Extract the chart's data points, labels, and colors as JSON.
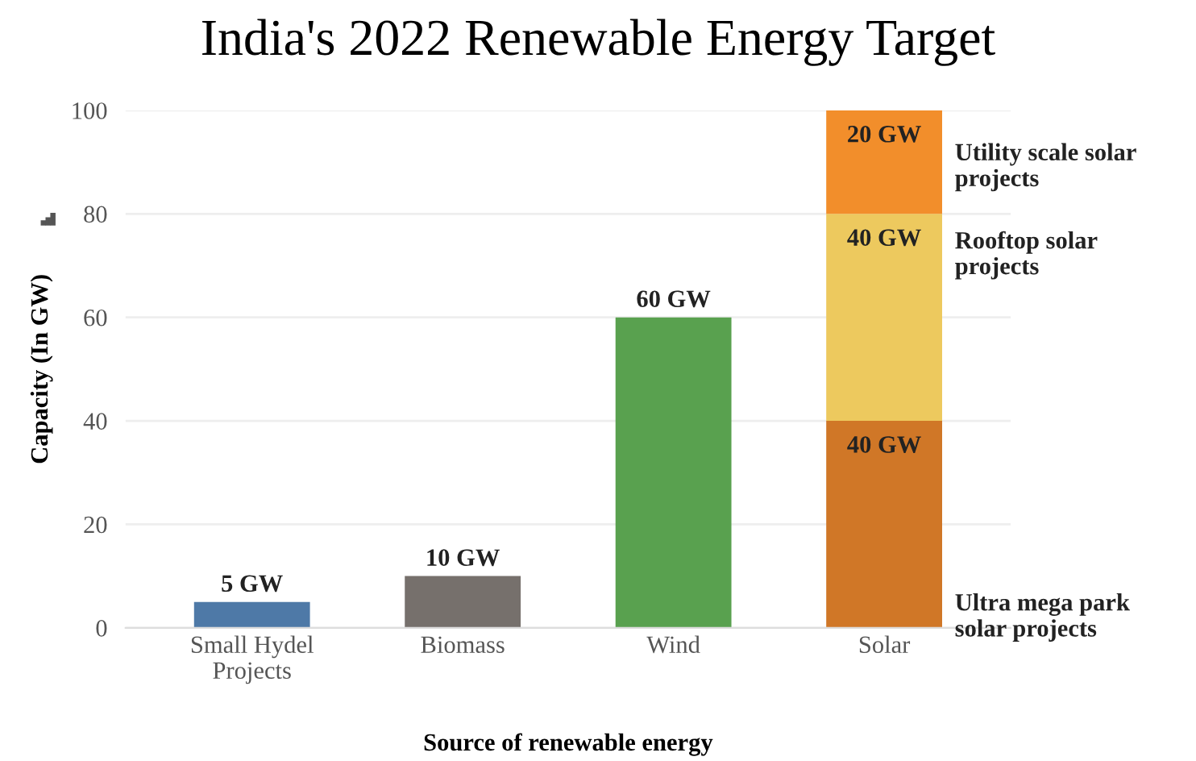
{
  "chart_data": {
    "type": "bar",
    "title": "India's 2022 Renewable Energy Target",
    "xlabel": "Source of renewable energy",
    "ylabel": "Capacity (In GW)",
    "categories": [
      "Small Hydel\nProjects",
      "Biomass",
      "Wind",
      "Solar"
    ],
    "stacked": true,
    "series": [
      {
        "colors": [
          "#4e79a7",
          "#76706c",
          "#59a14f",
          null
        ],
        "values": [
          5,
          10,
          60,
          null
        ],
        "value_labels": [
          "5 GW",
          "10 GW",
          "60 GW",
          null
        ]
      },
      {
        "name": "Ultra mega park\nsolar projects",
        "color": "#d07727",
        "values": [
          null,
          null,
          null,
          40
        ],
        "value_labels": [
          null,
          null,
          null,
          "40 GW"
        ]
      },
      {
        "name": "Rooftop solar\nprojects",
        "color": "#edc95e",
        "values": [
          null,
          null,
          null,
          40
        ],
        "value_labels": [
          null,
          null,
          null,
          "40 GW"
        ]
      },
      {
        "name": "Utility scale solar\nprojects",
        "color": "#f28e2b",
        "values": [
          null,
          null,
          null,
          20
        ],
        "value_labels": [
          null,
          null,
          null,
          "20 GW"
        ]
      }
    ],
    "ylim": [
      0,
      100
    ],
    "yticks": [
      0,
      20,
      40,
      60,
      80,
      100
    ],
    "grid": "y",
    "legend": false
  }
}
